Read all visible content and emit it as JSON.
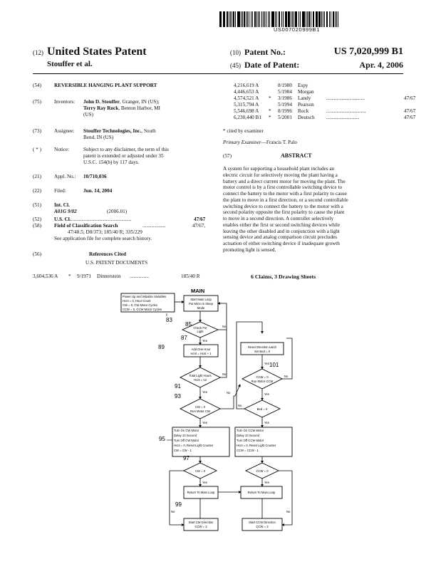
{
  "barcode_text": "US007020999B1",
  "header": {
    "left_code": "(12)",
    "left_title": "United States Patent",
    "inventor_short": "Stouffer et al.",
    "patno_code": "(10)",
    "patno_label": "Patent No.:",
    "patno_value": "US 7,020,999 B1",
    "date_code": "(45)",
    "date_label": "Date of Patent:",
    "date_value": "Apr. 4, 2006"
  },
  "biblio": {
    "title_code": "(54)",
    "title": "REVERSIBLE HANGING PLANT SUPPORT",
    "inventors_code": "(75)",
    "inventors_label": "Inventors:",
    "inventor1_name": "John D. Stouffer",
    "inventor1_loc": ", Granger, IN (US);",
    "inventor2_name": "Terry Ray Rock",
    "inventor2_loc": ", Benton Harbor, MI",
    "inventor2_country": "(US)",
    "assignee_code": "(73)",
    "assignee_label": "Assignee:",
    "assignee_name": "Stouffer Technologies, Inc.",
    "assignee_loc1": ", South",
    "assignee_loc2": "Bend, IN (US)",
    "notice_code": "( * )",
    "notice_label": "Notice:",
    "notice_l1": "Subject to any disclaimer, the term of this",
    "notice_l2": "patent is extended or adjusted under 35",
    "notice_l3": "U.S.C. 154(b) by 117 days.",
    "appl_code": "(21)",
    "appl_label": "Appl. No.:",
    "appl_value": "10/710,036",
    "filed_code": "(22)",
    "filed_label": "Filed:",
    "filed_value": "Jun. 14, 2004",
    "intcl_code": "(51)",
    "intcl_label": "Int. Cl.",
    "intcl_class": "A01G 9/02",
    "intcl_version": "(2006.01)",
    "uscl_code": "(52)",
    "uscl_label": "U.S. Cl.",
    "uscl_dots": "...............................................",
    "uscl_value": "47/67",
    "field_code": "(58)",
    "field_label": "Field of Classification Search",
    "field_dots": "..................",
    "field_value": "47/67,",
    "field_l2": "47/48.5; D8/373; 185/40 R; 335/229",
    "field_l3": "See application file for complete search history.",
    "refs_code": "(56)",
    "refs_title": "References Cited",
    "refs_sub": "U.S. PATENT DOCUMENTS",
    "ref0": {
      "no": "3,604,536 A",
      "star": "*",
      "date": "9/1971",
      "name": "Dinnerstein",
      "dots": "...............",
      "cls": "185/40 R"
    }
  },
  "refs_right": [
    {
      "no": "4,216,619 A",
      "star": "",
      "date": "8/1980",
      "name": "Espy",
      "dots": "",
      "cls": ""
    },
    {
      "no": "4,446,653 A",
      "star": "",
      "date": "5/1984",
      "name": "Morgan",
      "dots": "",
      "cls": ""
    },
    {
      "no": "4,574,521 A",
      "star": "*",
      "date": "3/1986",
      "name": "Landy",
      "dots": "..............................",
      "cls": "47/67"
    },
    {
      "no": "5,315,794 A",
      "star": "",
      "date": "5/1994",
      "name": "Pearson",
      "dots": "",
      "cls": ""
    },
    {
      "no": "5,546,698 A",
      "star": "*",
      "date": "8/1996",
      "name": "Rock",
      "dots": "...............................",
      "cls": "47/67"
    },
    {
      "no": "6,230,440 B1",
      "star": "*",
      "date": "5/2001",
      "name": "Deutsch",
      "dots": "..........................",
      "cls": "47/67"
    }
  ],
  "cited_note": "* cited by examiner",
  "examiner_label": "Primary Examiner",
  "examiner_name": "—Francis T. Palo",
  "abstract_code": "(57)",
  "abstract_title": "ABSTRACT",
  "abstract_lines": [
    "A system for supporting a household plant includes an",
    "electric circuit for selectively moving the plant having a",
    "battery and a direct current motor for moving the plant. The",
    "motor control is by a first controllable switching device to",
    "connect the battery to the motor with a first polarity to cause",
    "the plant to move in a first direction, or a second controllable",
    "switching device to connect the battery to the motor with a",
    "second polarity opposite the first polarity to cause the plant",
    "to move in a second direction. A controller selectively",
    "enables either the first or second switching devices while",
    "leaving the other disabled and in conjunction with a light",
    "sensing device and analog comparison circuit precludes",
    "actuation of either switching device if inadequate growth",
    "promoting light is sensed."
  ],
  "claims_line": "6 Claims, 3 Drawing Sheets",
  "flow": {
    "title": "MAIN",
    "init_box": [
      "Power Up and Initialize Variables",
      "Hcnt = 0, Hour Count",
      "CW = 0, CW Motor Cycles",
      "CCW = 0, CCW Motor Cycles"
    ],
    "start_box": [
      "Start Main Loop",
      "Put Micro in Sleep",
      "Mode"
    ],
    "check_light": [
      "Check For",
      "Light"
    ],
    "add_hour": [
      "Add One Hour",
      "Hcnt = Hcnt + 1"
    ],
    "total_hours": [
      "Total Light Hours",
      "Hcnt = 12"
    ],
    "cw_run": [
      "CW = 0",
      "Run Motor CW"
    ],
    "reset_latch": [
      "Reset Direction Latch",
      "Set Bed = 0"
    ],
    "ccw_run": [
      "CCW = 0",
      "Run Motor CCW"
    ],
    "bed_check": [
      "Bed = 0"
    ],
    "turn_cw": [
      "Turn On CW Motor",
      "Delay 10 Second",
      "Turn Off CW Motor",
      "Hcnt = 0, Reset Light Counter",
      "CW = CW - 1"
    ],
    "turn_ccw": [
      "Turn On CCW Motor",
      "Delay 10 Second",
      "Turn Off CCW Motor",
      "Hcnt = 0, Reset Light Counter",
      "CCW = CCW - 1"
    ],
    "cw_zero": [
      "CW = 0"
    ],
    "ccw_zero": [
      "CCW = 0"
    ],
    "ret_left": [
      "Return To Main Loop"
    ],
    "ret_right": [
      "Return To Main Loop"
    ],
    "start_cw_dir": [
      "Start CW Direction",
      "CCW = 3"
    ],
    "start_ccw_dir": [
      "Start CCW Direction",
      "CCW = 3"
    ],
    "yes": "Yes",
    "no": "No",
    "refs": {
      "r83": "83",
      "r85": "85",
      "r87": "87",
      "r89": "89",
      "r91": "91",
      "r93": "93",
      "r95": "95",
      "r97": "97",
      "r99": "99",
      "r101": "101"
    }
  }
}
